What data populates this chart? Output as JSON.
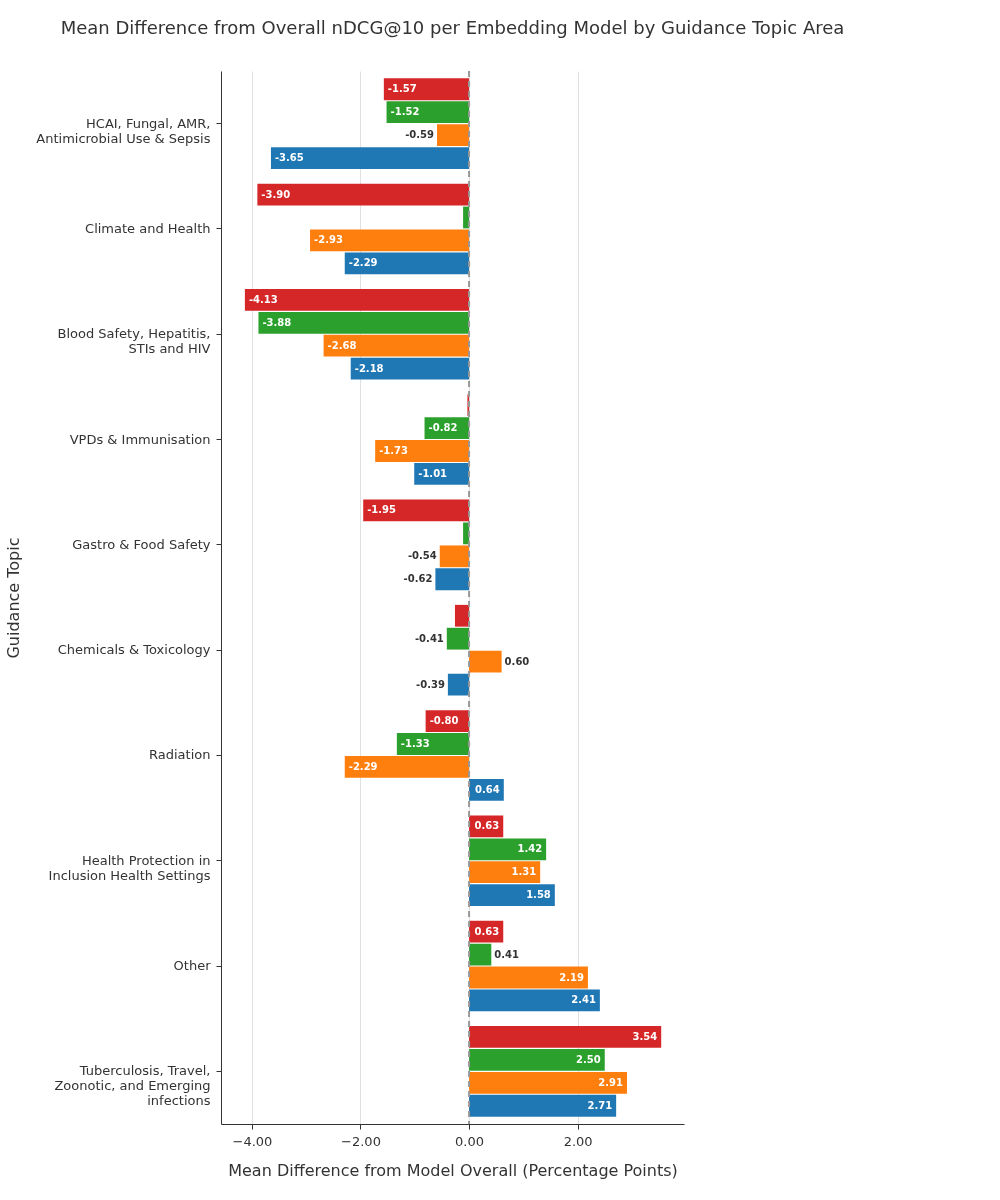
{
  "chart_data": {
    "type": "bar",
    "orientation": "horizontal",
    "title": "Mean Difference from Overall nDCG@10 per Embedding Model by Guidance Topic Area",
    "xlabel": "Mean Difference from Model Overall (Percentage Points)",
    "ylabel": "Guidance Topic",
    "categories": [
      "HCAI, Fungal, AMR, Antimicrobial Use & Sepsis",
      "Climate and Health",
      "Blood Safety, Hepatitis, STIs and HIV",
      "VPDs & Immunisation",
      "Gastro & Food Safety",
      "Chemicals & Toxicology",
      "Radiation",
      "Health Protection in Inclusion Health Settings",
      "Other",
      "Tuberculosis, Travel, Zoonotic, and Emerging infections"
    ],
    "series": [
      {
        "color": "#1f77b4",
        "values": [
          -3.65,
          -2.29,
          -2.18,
          -1.01,
          -0.62,
          -0.39,
          0.64,
          1.58,
          2.41,
          2.71
        ],
        "value_labels": [
          "-3.65",
          "-2.29",
          "-2.18",
          "-1.01",
          "-0.62",
          "-0.39",
          "0.64",
          "1.58",
          "2.41",
          "2.71"
        ]
      },
      {
        "color": "#ff7f0e",
        "values": [
          -0.59,
          -2.93,
          -2.68,
          -1.73,
          -0.54,
          0.6,
          -2.29,
          1.31,
          2.19,
          2.91
        ],
        "value_labels": [
          "-0.59",
          "-2.93",
          "-2.68",
          "-1.73",
          "-0.54",
          "0.60",
          "-2.29",
          "1.31",
          "2.19",
          "2.91"
        ]
      },
      {
        "color": "#2ca02c",
        "values": [
          -1.52,
          -0.11,
          -3.88,
          -0.82,
          -0.11,
          -0.41,
          -1.33,
          1.42,
          0.41,
          2.5
        ],
        "value_labels": [
          "-1.52",
          null,
          "-3.88",
          "-0.82",
          null,
          "-0.41",
          "-1.33",
          "1.42",
          "0.41",
          "2.50"
        ]
      },
      {
        "color": "#d62728",
        "values": [
          -1.57,
          -3.9,
          -4.13,
          -0.03,
          -1.95,
          -0.26,
          -0.8,
          0.63,
          0.63,
          3.54
        ],
        "value_labels": [
          "-1.57",
          "-3.90",
          "-4.13",
          null,
          "-1.95",
          null,
          "-0.80",
          "0.63",
          "0.63",
          "3.54"
        ]
      }
    ],
    "xlim": [
      -4.57,
      3.96
    ],
    "xticks": [
      {
        "value": -4,
        "label": "−4.00"
      },
      {
        "value": -2,
        "label": "−2.00"
      },
      {
        "value": 0,
        "label": "0.00"
      },
      {
        "value": 2,
        "label": "2.00"
      }
    ],
    "ref_lines": [
      {
        "axis": "x",
        "value": 0,
        "color": "#999999",
        "line_style": "dashed"
      }
    ],
    "grid": "x"
  }
}
